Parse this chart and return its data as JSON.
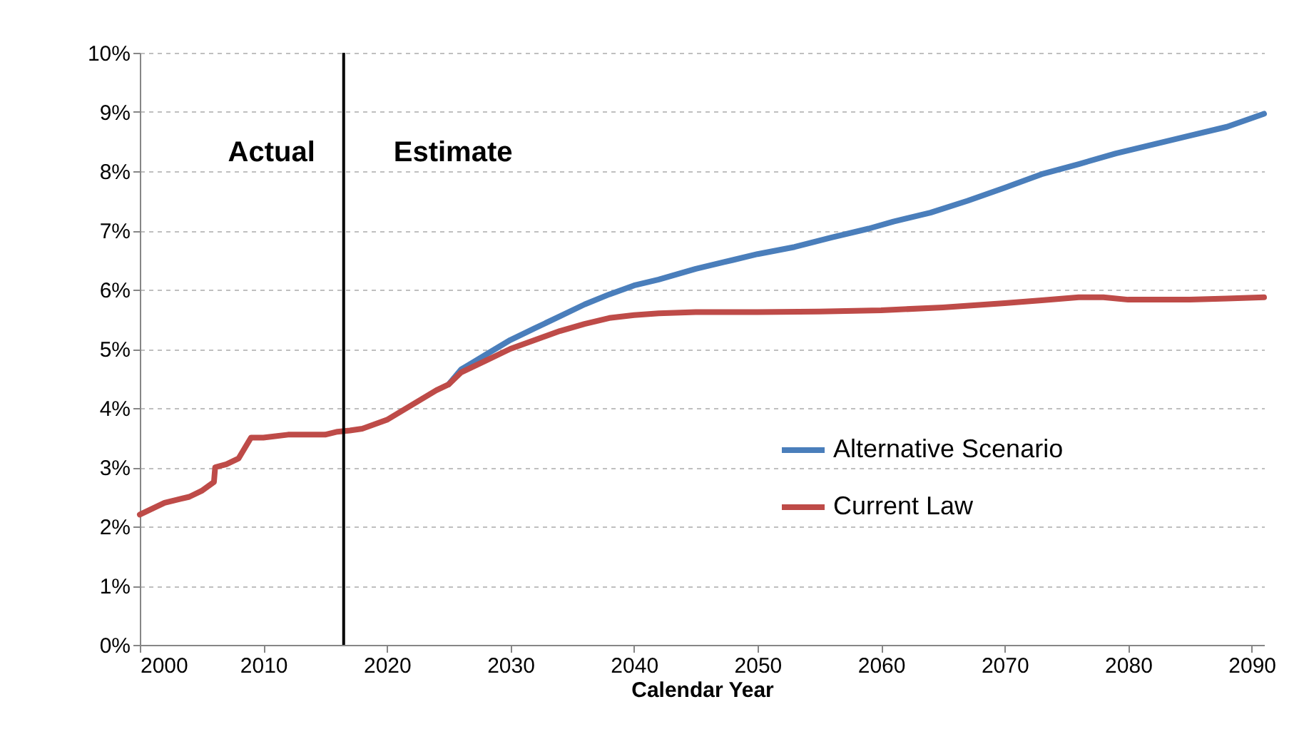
{
  "chart_data": {
    "type": "line",
    "xlabel": "Calendar Year",
    "xlim": [
      2000,
      2091
    ],
    "xticks": [
      2000,
      2010,
      2020,
      2030,
      2040,
      2050,
      2060,
      2070,
      2080,
      2090
    ],
    "ylim": [
      0,
      10
    ],
    "yticks": [
      {
        "value": 0,
        "label": "0%"
      },
      {
        "value": 1,
        "label": "1%"
      },
      {
        "value": 2,
        "label": "2%"
      },
      {
        "value": 3,
        "label": "3%"
      },
      {
        "value": 4,
        "label": "4%"
      },
      {
        "value": 5,
        "label": "5%"
      },
      {
        "value": 6,
        "label": "6%"
      },
      {
        "value": 7,
        "label": "7%"
      },
      {
        "value": 8,
        "label": "8%"
      },
      {
        "value": 9,
        "label": "9%"
      },
      {
        "value": 10,
        "label": "10%"
      }
    ],
    "grid": "y",
    "legend": "right",
    "marker": "none",
    "line_style": "solid",
    "ref_lines": [
      {
        "axis": "x",
        "value": 2016.5,
        "color": "#000000"
      }
    ],
    "annotations": [
      "Actual",
      "Estimate"
    ],
    "series": [
      {
        "name": "Alternative Scenario",
        "color": "#4a7ebb",
        "x": [
          2025,
          2026,
          2028,
          2030,
          2032,
          2034,
          2036,
          2038,
          2040,
          2042,
          2045,
          2048,
          2050,
          2053,
          2056,
          2059,
          2061,
          2064,
          2067,
          2070,
          2073,
          2076,
          2079,
          2082,
          2085,
          2088,
          2091
        ],
        "values": [
          4.4,
          4.65,
          4.9,
          5.15,
          5.35,
          5.55,
          5.75,
          5.92,
          6.07,
          6.17,
          6.35,
          6.5,
          6.6,
          6.72,
          6.88,
          7.03,
          7.15,
          7.3,
          7.5,
          7.72,
          7.95,
          8.12,
          8.3,
          8.45,
          8.6,
          8.75,
          8.97
        ]
      },
      {
        "name": "Current Law",
        "color": "#be4b48",
        "x": [
          2000,
          2001,
          2002,
          2003,
          2004,
          2005,
          2006,
          2006.1,
          2007,
          2008,
          2009,
          2010,
          2012,
          2015,
          2016,
          2017,
          2018,
          2020,
          2022,
          2024,
          2025,
          2026,
          2028,
          2030,
          2032,
          2034,
          2036,
          2038,
          2040,
          2042,
          2045,
          2050,
          2055,
          2060,
          2065,
          2070,
          2073,
          2076,
          2078,
          2080,
          2085,
          2088,
          2091
        ],
        "values": [
          2.2,
          2.3,
          2.4,
          2.45,
          2.5,
          2.6,
          2.75,
          3.0,
          3.05,
          3.15,
          3.5,
          3.5,
          3.55,
          3.55,
          3.6,
          3.62,
          3.65,
          3.8,
          4.05,
          4.3,
          4.4,
          4.6,
          4.8,
          5.0,
          5.15,
          5.3,
          5.42,
          5.52,
          5.57,
          5.6,
          5.62,
          5.62,
          5.63,
          5.65,
          5.7,
          5.77,
          5.82,
          5.87,
          5.87,
          5.83,
          5.83,
          5.85,
          5.87
        ]
      }
    ]
  }
}
